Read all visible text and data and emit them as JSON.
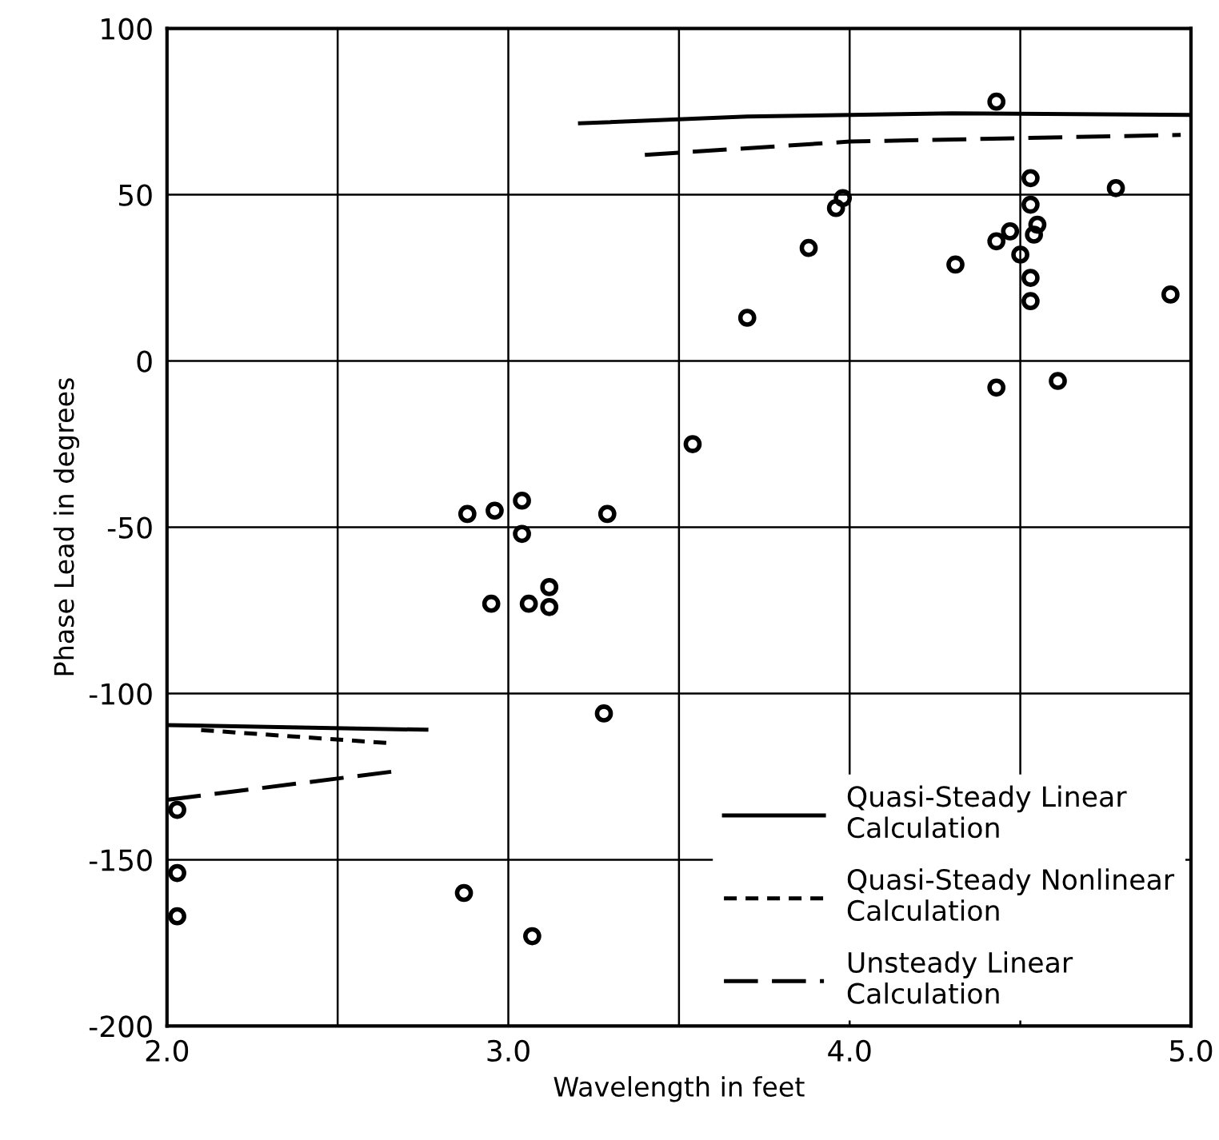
{
  "chart_data": {
    "type": "scatter",
    "xlabel": "Wavelength in feet",
    "ylabel": "Phase Lead in degrees",
    "xlim": [
      2.0,
      5.0
    ],
    "ylim": [
      -200,
      100
    ],
    "xticks": [
      {
        "value": 2,
        "label": "2.0"
      },
      {
        "value": 2.5,
        "label": null
      },
      {
        "value": 3,
        "label": "3.0"
      },
      {
        "value": 3.5,
        "label": null
      },
      {
        "value": 4,
        "label": "4.0"
      },
      {
        "value": 4.5,
        "label": null
      },
      {
        "value": 5,
        "label": "5.0"
      }
    ],
    "yticks": [
      -200,
      -150,
      -100,
      -50,
      0,
      50,
      100
    ],
    "grid": true,
    "legend": "lower right",
    "series": [
      {
        "color": "#000000",
        "marker": "circle",
        "x": [
          4.43,
          4.53,
          4.78,
          3.98,
          3.96,
          4.53,
          4.47,
          4.55,
          4.54,
          4.43,
          3.88,
          4.5,
          4.31,
          4.53,
          4.53,
          4.94,
          3.7,
          4.43,
          4.61,
          3.54,
          2.88,
          2.96,
          3.04,
          3.04,
          3.29,
          3.12,
          2.95,
          3.06,
          3.12,
          3.28,
          2.03,
          2.03,
          2.03,
          2.87,
          3.07
        ],
        "values": [
          78,
          55,
          52,
          49,
          46,
          47,
          39,
          41,
          38,
          36,
          34,
          32,
          29,
          25,
          18,
          20,
          13,
          -8,
          -6,
          -25,
          -46,
          -45,
          -42,
          -52,
          -46,
          -68,
          -73,
          -73,
          -74,
          -106,
          -135,
          -154,
          -167,
          -160,
          -173
        ]
      },
      {
        "type": "line",
        "name": "Quasi-Steady Linear\nCalculation",
        "color": "#000000",
        "line_style": "solid",
        "x": [
          2.0,
          2.76,
          null,
          3.21,
          3.7,
          4.3,
          5.0
        ],
        "values": [
          -109.5,
          -110.9,
          null,
          71.5,
          73.5,
          74.5,
          74
        ]
      },
      {
        "type": "line",
        "name": "Quasi-Steady Nonlinear\nCalculation",
        "color": "#000000",
        "line_style": "dashed",
        "x": [
          2.1,
          2.66
        ],
        "values": [
          -111,
          -115
        ]
      },
      {
        "type": "line",
        "name": "Unsteady Linear\nCalculation",
        "color": "#000000",
        "line_style": "long dashed",
        "x": [
          2.0,
          2.66,
          null,
          3.4,
          4.0,
          4.97
        ],
        "values": [
          -132,
          -123.5,
          null,
          62,
          66,
          68
        ]
      }
    ]
  }
}
